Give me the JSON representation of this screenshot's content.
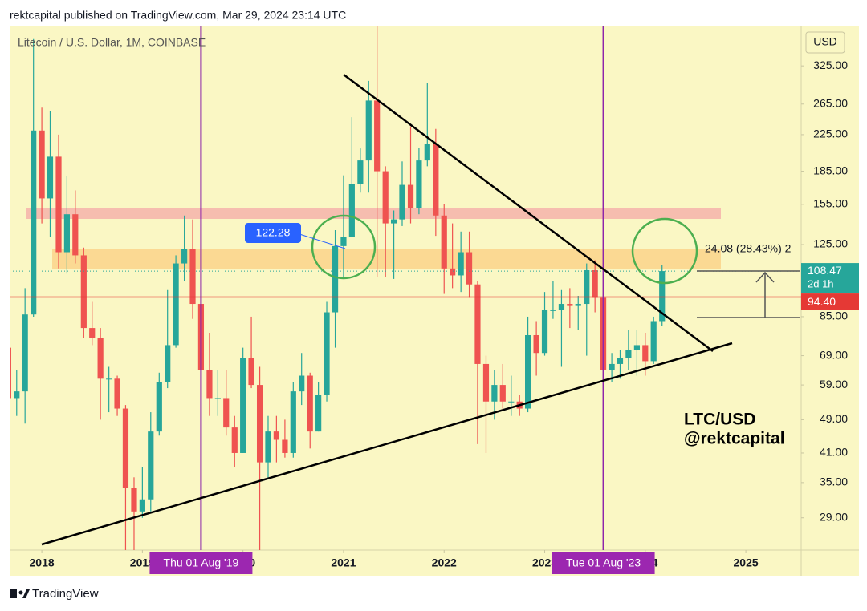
{
  "header": "rektcapital published on TradingView.com, Mar 29, 2024 23:14 UTC",
  "footer": "TradingView",
  "chart_data": {
    "type": "candlestick",
    "title": "Litecoin / U.S. Dollar, 1M, COINBASE",
    "currency": "USD",
    "log_scale": true,
    "up_color": "#26a69a",
    "down_color": "#ef5350",
    "x": [
      2017.667,
      2017.75,
      2017.833,
      2017.917,
      2018,
      2018.083,
      2018.167,
      2018.25,
      2018.333,
      2018.417,
      2018.5,
      2018.583,
      2018.667,
      2018.75,
      2018.833,
      2018.917,
      2019,
      2019.083,
      2019.167,
      2019.25,
      2019.333,
      2019.417,
      2019.5,
      2019.583,
      2019.667,
      2019.75,
      2019.833,
      2019.917,
      2020,
      2020.083,
      2020.167,
      2020.25,
      2020.333,
      2020.417,
      2020.5,
      2020.583,
      2020.667,
      2020.75,
      2020.833,
      2020.917,
      2021,
      2021.083,
      2021.167,
      2021.25,
      2021.333,
      2021.417,
      2021.5,
      2021.583,
      2021.667,
      2021.75,
      2021.833,
      2021.917,
      2022,
      2022.083,
      2022.167,
      2022.25,
      2022.333,
      2022.417,
      2022.5,
      2022.583,
      2022.667,
      2022.75,
      2022.833,
      2022.917,
      2023,
      2023.083,
      2023.167,
      2023.25,
      2023.333,
      2023.417,
      2023.5,
      2023.583,
      2023.667,
      2023.75,
      2023.833,
      2023.917,
      2024,
      2024.083,
      2024.167
    ],
    "open": [
      72,
      55,
      57,
      86,
      230,
      160,
      200,
      120,
      147,
      118,
      80,
      76,
      61,
      61,
      52,
      34,
      30,
      32,
      46,
      60,
      73,
      113,
      122,
      91,
      64,
      55,
      55,
      47,
      41,
      68,
      59,
      39,
      46,
      44,
      41,
      57,
      62,
      46,
      56,
      87,
      124,
      130,
      173,
      196,
      270,
      185,
      140,
      143,
      172,
      152,
      196,
      214,
      146,
      110,
      106,
      120,
      101,
      66,
      54,
      59,
      54,
      54,
      52,
      77,
      70,
      88,
      88,
      91,
      90,
      91,
      109,
      94,
      64,
      66,
      68,
      71,
      73,
      67,
      83
    ],
    "high": [
      89,
      64,
      99,
      375,
      260,
      255,
      225,
      180,
      167,
      123,
      92,
      80,
      65,
      62,
      53,
      36,
      38,
      51,
      63,
      98,
      118,
      146,
      143,
      100,
      78,
      64,
      64,
      50,
      72,
      85,
      65,
      50,
      50,
      49,
      60,
      70,
      63,
      60,
      92,
      135,
      181,
      247,
      209,
      300,
      413,
      190,
      150,
      195,
      235,
      210,
      296,
      232,
      155,
      140,
      134,
      134,
      103,
      69,
      64,
      66,
      62,
      56,
      85,
      83,
      97,
      103,
      98,
      99,
      95,
      113,
      115,
      95,
      70,
      71,
      79,
      79,
      78,
      85,
      112
    ],
    "low": [
      36,
      50,
      48,
      85,
      140,
      130,
      110,
      107,
      113,
      76,
      73,
      49,
      51,
      50,
      23,
      23,
      29,
      30,
      45,
      58,
      72,
      103,
      84,
      62,
      50,
      50,
      45,
      38,
      41,
      58,
      23,
      36,
      39,
      40,
      40,
      53,
      42,
      46,
      54,
      72,
      105,
      130,
      165,
      165,
      105,
      105,
      104,
      138,
      140,
      147,
      190,
      131,
      96,
      99,
      97,
      94,
      43,
      41,
      49,
      52,
      50,
      50,
      51,
      62,
      69,
      84,
      65,
      80,
      79,
      69,
      87,
      59,
      60,
      61,
      64,
      62,
      62,
      66,
      81
    ],
    "close": [
      55,
      57,
      86,
      230,
      160,
      200,
      120,
      147,
      118,
      80,
      76,
      61,
      61,
      52,
      34,
      30,
      32,
      46,
      60,
      73,
      113,
      122,
      91,
      64,
      55,
      55,
      47,
      41,
      68,
      59,
      39,
      46,
      44,
      41,
      57,
      62,
      46,
      56,
      87,
      124,
      130,
      173,
      196,
      270,
      185,
      140,
      143,
      172,
      152,
      196,
      214,
      146,
      110,
      106,
      120,
      101,
      66,
      54,
      59,
      54,
      54,
      52,
      77,
      70,
      88,
      88,
      91,
      90,
      91,
      109,
      94,
      64,
      66,
      68,
      71,
      73,
      67,
      83,
      108.47
    ],
    "xlim": [
      2017.68,
      2025.55
    ],
    "xticks": [
      2018,
      2019,
      2020,
      2021,
      2022,
      2023,
      2024,
      2025
    ],
    "ylim": [
      24.4,
      403
    ],
    "yticks": [
      {
        "value": 29,
        "label": "29.00"
      },
      {
        "value": 35,
        "label": "35.00"
      },
      {
        "value": 41,
        "label": "41.00"
      },
      {
        "value": 49,
        "label": "49.00"
      },
      {
        "value": 59,
        "label": "59.00"
      },
      {
        "value": 69,
        "label": "69.00"
      },
      {
        "value": 85,
        "label": "85.00"
      },
      {
        "value": 125,
        "label": "125.00"
      },
      {
        "value": 155,
        "label": "155.00"
      },
      {
        "value": 185,
        "label": "185.00"
      },
      {
        "value": 225,
        "label": "225.00"
      },
      {
        "value": 265,
        "label": "265.00"
      },
      {
        "value": 325,
        "label": "325.00"
      }
    ],
    "hline": {
      "value": 94.4,
      "label": "94.40",
      "color": "#e53935"
    },
    "countdown": "2d 1h",
    "markers": [
      {
        "x": 2019.583,
        "label": "Thu 01 Aug '19"
      },
      {
        "x": 2023.583,
        "label": "Tue 01 Aug '23"
      }
    ],
    "callout": "122.28",
    "measure_label": "24.08 (28.43%) 2",
    "annotation": [
      "LTC/USD",
      "@rektcapital"
    ]
  }
}
